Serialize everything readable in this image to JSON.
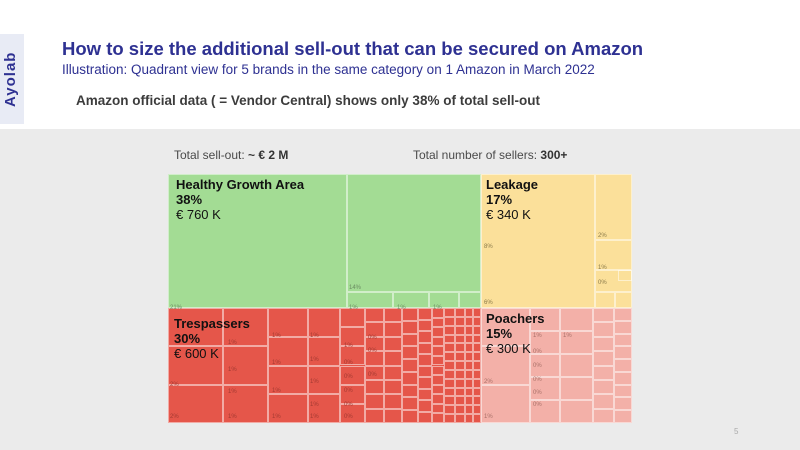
{
  "brand": "Ayolab",
  "title": "How to size the additional sell-out that can be secured on Amazon",
  "subtitle": "Illustration: Quadrant view for 5 brands in the same category on 1 Amazon in March 2022",
  "headline": "Amazon official data ( = Vendor Central) shows only 38% of total sell-out",
  "stats": {
    "sellout_label": "Total sell-out: ",
    "sellout_value": "~ € 2 M",
    "sellers_label": "Total number of sellers: ",
    "sellers_value": "300+"
  },
  "colors": {
    "title": "#2e3192",
    "healthy": "#a3dc94",
    "leakage": "#fbe09a",
    "trespassers": "#e5564a",
    "poachers": "#f3b0a8"
  },
  "quadrants": {
    "healthy": {
      "name": "Healthy Growth Area",
      "percent": "38%",
      "value": "€ 760 K"
    },
    "leakage": {
      "name": "Leakage",
      "percent": "17%",
      "value": "€ 340 K"
    },
    "trespassers": {
      "name": "Trespassers",
      "percent": "30%",
      "value": "€ 600 K"
    },
    "poachers": {
      "name": "Poachers",
      "percent": "15%",
      "value": "€ 300 K"
    }
  },
  "cell_labels": {
    "green": [
      "21%",
      "14%",
      "1%",
      "1%",
      "1%"
    ],
    "yellow": [
      "8%",
      "2%",
      "1%",
      "0%",
      "6%"
    ],
    "red": [
      "2%",
      "2%",
      "1%",
      "1%",
      "1%",
      "1%",
      "1%",
      "1%",
      "1%",
      "1%",
      "1%",
      "1%",
      "1%",
      "1%",
      "1%",
      "1%",
      "0%",
      "0%",
      "0%",
      "0%",
      "0%",
      "0%",
      "0%",
      "0%"
    ],
    "pink": [
      "1%",
      "1%",
      "0%",
      "0%",
      "0%",
      "0%",
      "0%",
      "2%",
      "1%"
    ]
  },
  "page_number": "5"
}
